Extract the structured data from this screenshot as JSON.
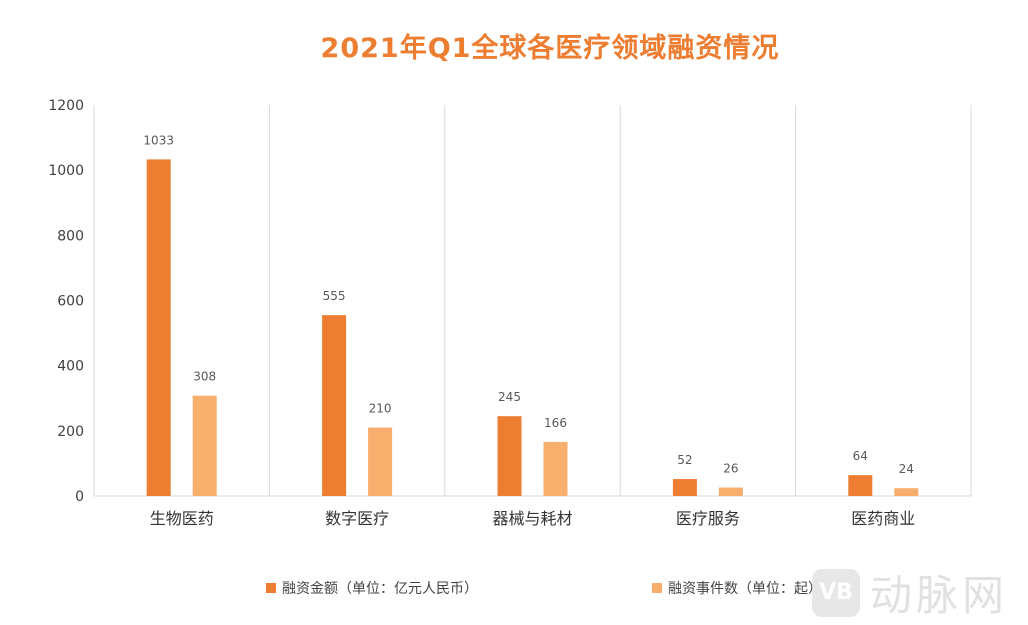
{
  "chart_data": {
    "type": "bar",
    "title": "2021年Q1全球各医疗领域融资情况",
    "categories": [
      "生物医药",
      "数字医疗",
      "器械与耗材",
      "医疗服务",
      "医药商业"
    ],
    "series": [
      {
        "name": "融资金额（单位：亿元人民币）",
        "values": [
          1033,
          555,
          245,
          52,
          64
        ],
        "color": "#ED7D31"
      },
      {
        "name": "融资事件数（单位：起）",
        "values": [
          308,
          210,
          166,
          26,
          24
        ],
        "color": "#F8AF6E"
      }
    ],
    "ylim": [
      0,
      1200
    ],
    "yticks": [
      0,
      200,
      400,
      600,
      800,
      1000,
      1200
    ],
    "grid": "vertical category separators",
    "legend": "bottom",
    "xlabel": "",
    "ylabel": ""
  },
  "watermark": {
    "logo_text": "动脉网"
  }
}
